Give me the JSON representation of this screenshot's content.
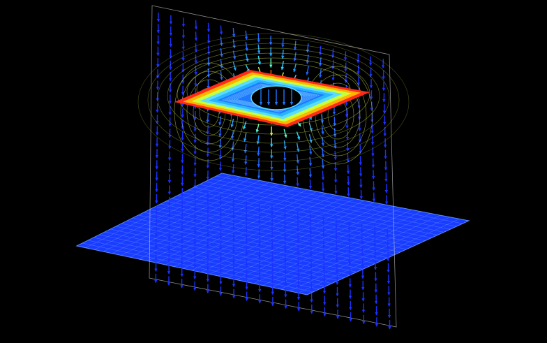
{
  "scene": {
    "background": "#000000",
    "plane_color": "#1a3cff",
    "plane_grid_color": "#5a8cff",
    "frame_color": "#c8c8c8",
    "arrow_colors": [
      "#1a32ff",
      "#1e64ff",
      "#1ea0ff",
      "#28d2ff",
      "#5affc8",
      "#c8ff3c",
      "#ffd200",
      "#ff6400",
      "#ff1e1e"
    ],
    "plate_colors": [
      "#ff2a1a",
      "#ffb400",
      "#c8ff3c",
      "#5adcff",
      "#28b4ff",
      "#1e78ff"
    ],
    "contour_color": "#e6ff50",
    "icons": [
      "vector-field-arrows",
      "current-loop-plate",
      "ground-plane",
      "vertical-slice-plane"
    ]
  }
}
